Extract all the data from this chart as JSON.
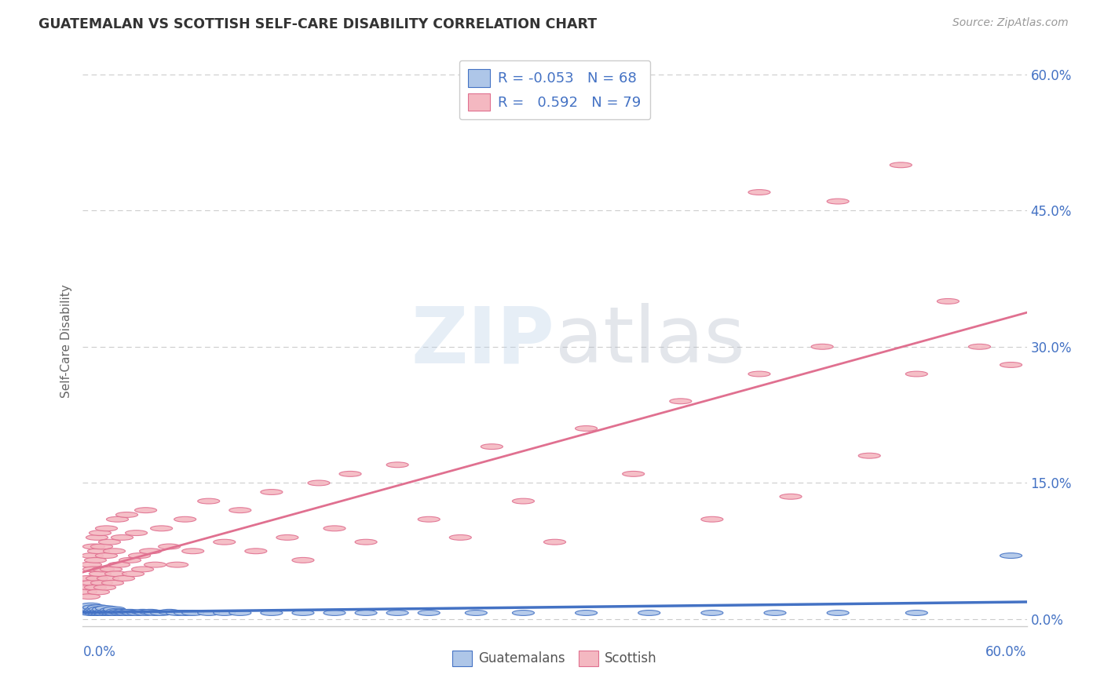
{
  "title": "GUATEMALAN VS SCOTTISH SELF-CARE DISABILITY CORRELATION CHART",
  "source": "Source: ZipAtlas.com",
  "ylabel": "Self-Care Disability",
  "xlim": [
    0.0,
    0.6
  ],
  "ylim": [
    -0.008,
    0.62
  ],
  "yticks": [
    0.0,
    0.15,
    0.3,
    0.45,
    0.6
  ],
  "guatemalan_color": "#aec6e8",
  "scottish_color": "#f4b8c1",
  "guatemalan_edge_color": "#4472c4",
  "scottish_edge_color": "#e07090",
  "guatemalan_line_color": "#4472c4",
  "scottish_line_color": "#e07090",
  "background_color": "#ffffff",
  "title_color": "#333333",
  "axis_label_color": "#666666",
  "grid_color": "#cccccc",
  "right_axis_color": "#4472c4",
  "x_label_color": "#4472c4",
  "legend_text_color": "#4472c4",
  "watermark_zip_color": "#b8d0e8",
  "watermark_atlas_color": "#b0b8c8",
  "guatemalan_x": [
    0.002,
    0.003,
    0.004,
    0.005,
    0.005,
    0.006,
    0.006,
    0.007,
    0.007,
    0.008,
    0.008,
    0.009,
    0.009,
    0.01,
    0.01,
    0.01,
    0.011,
    0.011,
    0.012,
    0.012,
    0.013,
    0.013,
    0.014,
    0.015,
    0.015,
    0.016,
    0.017,
    0.018,
    0.018,
    0.019,
    0.02,
    0.02,
    0.021,
    0.022,
    0.023,
    0.025,
    0.026,
    0.028,
    0.03,
    0.032,
    0.035,
    0.038,
    0.04,
    0.043,
    0.046,
    0.05,
    0.055,
    0.06,
    0.065,
    0.07,
    0.08,
    0.09,
    0.1,
    0.12,
    0.14,
    0.16,
    0.18,
    0.2,
    0.22,
    0.25,
    0.28,
    0.32,
    0.36,
    0.4,
    0.44,
    0.48,
    0.53,
    0.59
  ],
  "guatemalan_y": [
    0.01,
    0.008,
    0.012,
    0.007,
    0.015,
    0.009,
    0.011,
    0.008,
    0.013,
    0.007,
    0.01,
    0.009,
    0.011,
    0.007,
    0.01,
    0.013,
    0.008,
    0.011,
    0.007,
    0.009,
    0.008,
    0.011,
    0.007,
    0.009,
    0.012,
    0.008,
    0.007,
    0.01,
    0.008,
    0.007,
    0.008,
    0.011,
    0.007,
    0.009,
    0.008,
    0.007,
    0.008,
    0.007,
    0.008,
    0.007,
    0.007,
    0.008,
    0.007,
    0.008,
    0.007,
    0.007,
    0.008,
    0.007,
    0.007,
    0.007,
    0.007,
    0.007,
    0.007,
    0.007,
    0.007,
    0.007,
    0.007,
    0.007,
    0.007,
    0.007,
    0.007,
    0.007,
    0.007,
    0.007,
    0.007,
    0.007,
    0.007,
    0.07
  ],
  "scottish_x": [
    0.002,
    0.003,
    0.004,
    0.005,
    0.005,
    0.006,
    0.006,
    0.007,
    0.007,
    0.008,
    0.008,
    0.009,
    0.009,
    0.01,
    0.01,
    0.011,
    0.011,
    0.012,
    0.012,
    0.013,
    0.014,
    0.015,
    0.015,
    0.016,
    0.017,
    0.018,
    0.019,
    0.02,
    0.021,
    0.022,
    0.023,
    0.025,
    0.026,
    0.028,
    0.03,
    0.032,
    0.034,
    0.036,
    0.038,
    0.04,
    0.043,
    0.046,
    0.05,
    0.055,
    0.06,
    0.065,
    0.07,
    0.08,
    0.09,
    0.1,
    0.11,
    0.12,
    0.13,
    0.14,
    0.15,
    0.16,
    0.17,
    0.18,
    0.2,
    0.22,
    0.24,
    0.26,
    0.28,
    0.3,
    0.32,
    0.35,
    0.38,
    0.4,
    0.43,
    0.45,
    0.47,
    0.5,
    0.53,
    0.55,
    0.57,
    0.59,
    0.43,
    0.48,
    0.52
  ],
  "scottish_y": [
    0.03,
    0.045,
    0.025,
    0.06,
    0.035,
    0.07,
    0.04,
    0.055,
    0.08,
    0.035,
    0.065,
    0.045,
    0.09,
    0.03,
    0.075,
    0.05,
    0.095,
    0.04,
    0.08,
    0.055,
    0.035,
    0.07,
    0.1,
    0.045,
    0.085,
    0.055,
    0.04,
    0.075,
    0.05,
    0.11,
    0.06,
    0.09,
    0.045,
    0.115,
    0.065,
    0.05,
    0.095,
    0.07,
    0.055,
    0.12,
    0.075,
    0.06,
    0.1,
    0.08,
    0.06,
    0.11,
    0.075,
    0.13,
    0.085,
    0.12,
    0.075,
    0.14,
    0.09,
    0.065,
    0.15,
    0.1,
    0.16,
    0.085,
    0.17,
    0.11,
    0.09,
    0.19,
    0.13,
    0.085,
    0.21,
    0.16,
    0.24,
    0.11,
    0.27,
    0.135,
    0.3,
    0.18,
    0.27,
    0.35,
    0.3,
    0.28,
    0.47,
    0.46,
    0.5
  ]
}
